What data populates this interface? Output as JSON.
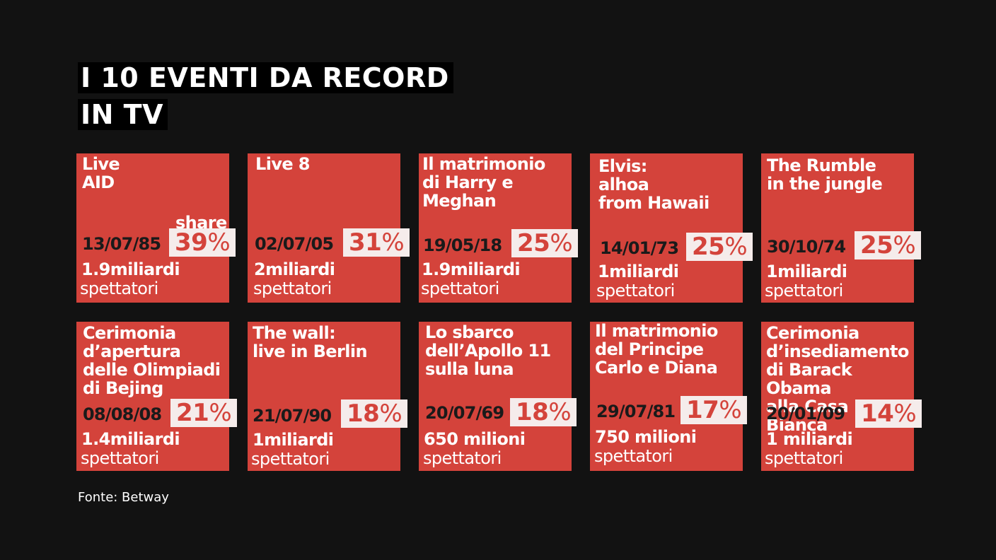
{
  "title": {
    "line1": "I 10 EVENTI DA RECORD",
    "line2": "IN TV"
  },
  "share_label": "share",
  "percent_sign": "%",
  "viewers_label": "spettatori",
  "events": [
    {
      "title": "Live\nAID",
      "date": "13/07/85",
      "share": "39",
      "viewers": "1.9miliardi"
    },
    {
      "title": "Live 8",
      "date": "02/07/05",
      "share": "31",
      "viewers": "2miliardi"
    },
    {
      "title": "Il matrimonio\ndi Harry e\nMeghan",
      "date": "19/05/18",
      "share": "25",
      "viewers": "1.9miliardi"
    },
    {
      "title": "Elvis:\nalhoa\nfrom Hawaii",
      "date": "14/01/73",
      "share": "25",
      "viewers": "1miliardi"
    },
    {
      "title": "The Rumble\nin the jungle",
      "date": "30/10/74",
      "share": "25",
      "viewers": "1miliardi"
    },
    {
      "title": "Cerimonia\nd’apertura\ndelle Olimpiadi\ndi Bejing",
      "date": "08/08/08",
      "share": "21",
      "viewers": "1.4miliardi"
    },
    {
      "title": "The wall:\nlive in Berlin",
      "date": "21/07/90",
      "share": "18",
      "viewers": "1miliardi"
    },
    {
      "title": "Lo sbarco\ndell’Apollo 11\nsulla luna",
      "date": "20/07/69",
      "share": "18",
      "viewers": "650 milioni"
    },
    {
      "title": "Il matrimonio\ndel Principe\nCarlo e Diana",
      "date": "29/07/81",
      "share": "17",
      "viewers": "750 milioni"
    },
    {
      "title": "Cerimonia\nd’insediamento\ndi Barack Obama\nalla Casa Bianca",
      "date": "20/01/09",
      "share": "14",
      "viewers": "1 miliardi"
    }
  ],
  "source": "Fonte: Betway",
  "colors": {
    "background": "#121212",
    "card": "#d4433b",
    "share_box": "#f5eceb"
  }
}
